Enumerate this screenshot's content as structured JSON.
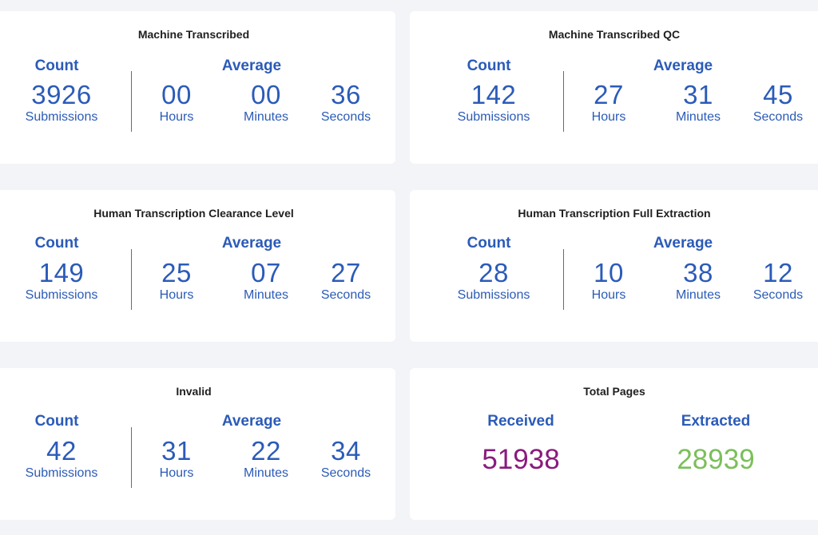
{
  "colors": {
    "accent_blue": "#2b5bb8",
    "received_purple": "#8a1a7e",
    "extracted_green": "#7bbf5a",
    "background": "#f2f4f7",
    "card": "#ffffff"
  },
  "cards": [
    {
      "title": "Machine Transcribed",
      "count_header": "Count",
      "average_header": "Average",
      "count": {
        "value": "3926",
        "label": "Submissions"
      },
      "hours": {
        "value": "00",
        "label": "Hours"
      },
      "minutes": {
        "value": "00",
        "label": "Minutes"
      },
      "seconds": {
        "value": "36",
        "label": "Seconds"
      }
    },
    {
      "title": "Machine Transcribed QC",
      "count_header": "Count",
      "average_header": "Average",
      "count": {
        "value": "142",
        "label": "Submissions"
      },
      "hours": {
        "value": "27",
        "label": "Hours"
      },
      "minutes": {
        "value": "31",
        "label": "Minutes"
      },
      "seconds": {
        "value": "45",
        "label": "Seconds"
      }
    },
    {
      "title": "Human Transcription Clearance Level",
      "count_header": "Count",
      "average_header": "Average",
      "count": {
        "value": "149",
        "label": "Submissions"
      },
      "hours": {
        "value": "25",
        "label": "Hours"
      },
      "minutes": {
        "value": "07",
        "label": "Minutes"
      },
      "seconds": {
        "value": "27",
        "label": "Seconds"
      }
    },
    {
      "title": "Human Transcription Full Extraction",
      "count_header": "Count",
      "average_header": "Average",
      "count": {
        "value": "28",
        "label": "Submissions"
      },
      "hours": {
        "value": "10",
        "label": "Hours"
      },
      "minutes": {
        "value": "38",
        "label": "Minutes"
      },
      "seconds": {
        "value": "12",
        "label": "Seconds"
      }
    },
    {
      "title": "Invalid",
      "count_header": "Count",
      "average_header": "Average",
      "count": {
        "value": "42",
        "label": "Submissions"
      },
      "hours": {
        "value": "31",
        "label": "Hours"
      },
      "minutes": {
        "value": "22",
        "label": "Minutes"
      },
      "seconds": {
        "value": "34",
        "label": "Seconds"
      }
    }
  ],
  "total_pages": {
    "title": "Total Pages",
    "received_label": "Received",
    "received_value": "51938",
    "extracted_label": "Extracted",
    "extracted_value": "28939"
  }
}
